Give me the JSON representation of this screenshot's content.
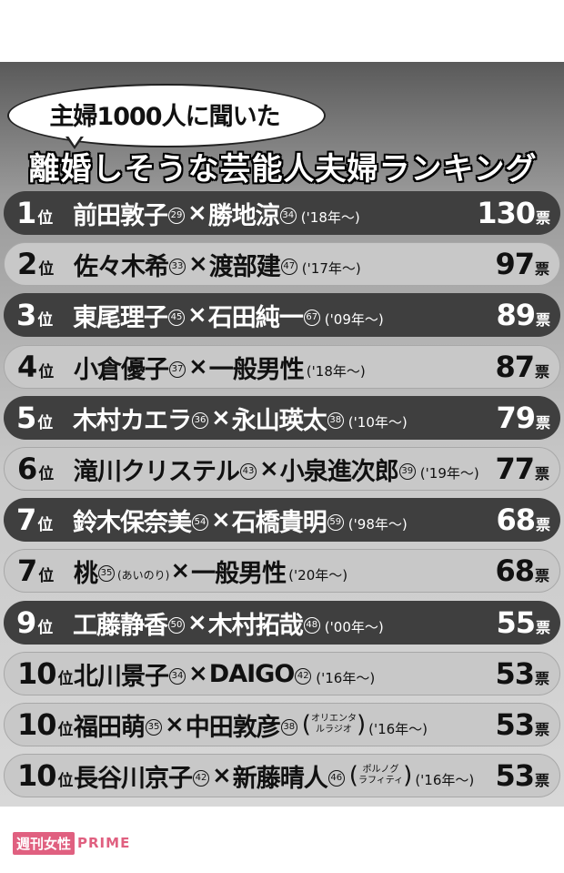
{
  "header": {
    "bubble": "主婦1000人に聞いた",
    "title": "離婚しそうな芸能人夫婦ランキング"
  },
  "rank_suffix": "位",
  "votes_suffix": "票",
  "times": "×",
  "rows": [
    {
      "rank": "1",
      "a": "前田敦子",
      "a_age": "29",
      "b": "勝地涼",
      "b_age": "34",
      "year": "('18年〜)",
      "votes": "130",
      "style": "dark"
    },
    {
      "rank": "2",
      "a": "佐々木希",
      "a_age": "33",
      "b": "渡部建",
      "b_age": "47",
      "year": "('17年〜)",
      "votes": "97",
      "style": "light"
    },
    {
      "rank": "3",
      "a": "東尾理子",
      "a_age": "45",
      "b": "石田純一",
      "b_age": "67",
      "year": "('09年〜)",
      "votes": "89",
      "style": "dark"
    },
    {
      "rank": "4",
      "a": "小倉優子",
      "a_age": "37",
      "b": "一般男性",
      "b_age": "",
      "year": "('18年〜)",
      "votes": "87",
      "style": "light"
    },
    {
      "rank": "5",
      "a": "木村カエラ",
      "a_age": "36",
      "b": "永山瑛太",
      "b_age": "38",
      "year": "('10年〜)",
      "votes": "79",
      "style": "dark"
    },
    {
      "rank": "6",
      "a": "滝川クリステル",
      "a_age": "43",
      "b": "小泉進次郎",
      "b_age": "39",
      "year": "('19年〜)",
      "votes": "77",
      "style": "light"
    },
    {
      "rank": "7",
      "a": "鈴木保奈美",
      "a_age": "54",
      "b": "石橋貴明",
      "b_age": "59",
      "year": "('98年〜)",
      "votes": "68",
      "style": "dark"
    },
    {
      "rank": "7",
      "a": "桃",
      "a_age": "35",
      "a_note": "(あいのり)",
      "b": "一般男性",
      "b_age": "",
      "year": "('20年〜)",
      "votes": "68",
      "style": "light"
    },
    {
      "rank": "9",
      "a": "工藤静香",
      "a_age": "50",
      "b": "木村拓哉",
      "b_age": "48",
      "year": "('00年〜)",
      "votes": "55",
      "style": "dark"
    },
    {
      "rank": "10",
      "a": "北川景子",
      "a_age": "34",
      "b": "DAIGO",
      "b_age": "42",
      "year": "('16年〜)",
      "votes": "53",
      "style": "light"
    },
    {
      "rank": "10",
      "a": "福田萌",
      "a_age": "35",
      "b": "中田敦彦",
      "b_age": "38",
      "b_group": [
        "オリエンタ",
        "ルラジオ"
      ],
      "year": "('16年〜)",
      "votes": "53",
      "style": "light"
    },
    {
      "rank": "10",
      "a": "長谷川京子",
      "a_age": "42",
      "b": "新藤晴人",
      "b_age": "46",
      "b_group": [
        "ポルノグ",
        "ラフィティ"
      ],
      "year": "('16年〜)",
      "votes": "53",
      "style": "light"
    }
  ],
  "logo": {
    "jp": "週刊女性",
    "en": "PRIME"
  },
  "colors": {
    "dark_row": "#3f3f3f",
    "light_row": "#c8c8c8",
    "logo_pink": "#e06080"
  }
}
